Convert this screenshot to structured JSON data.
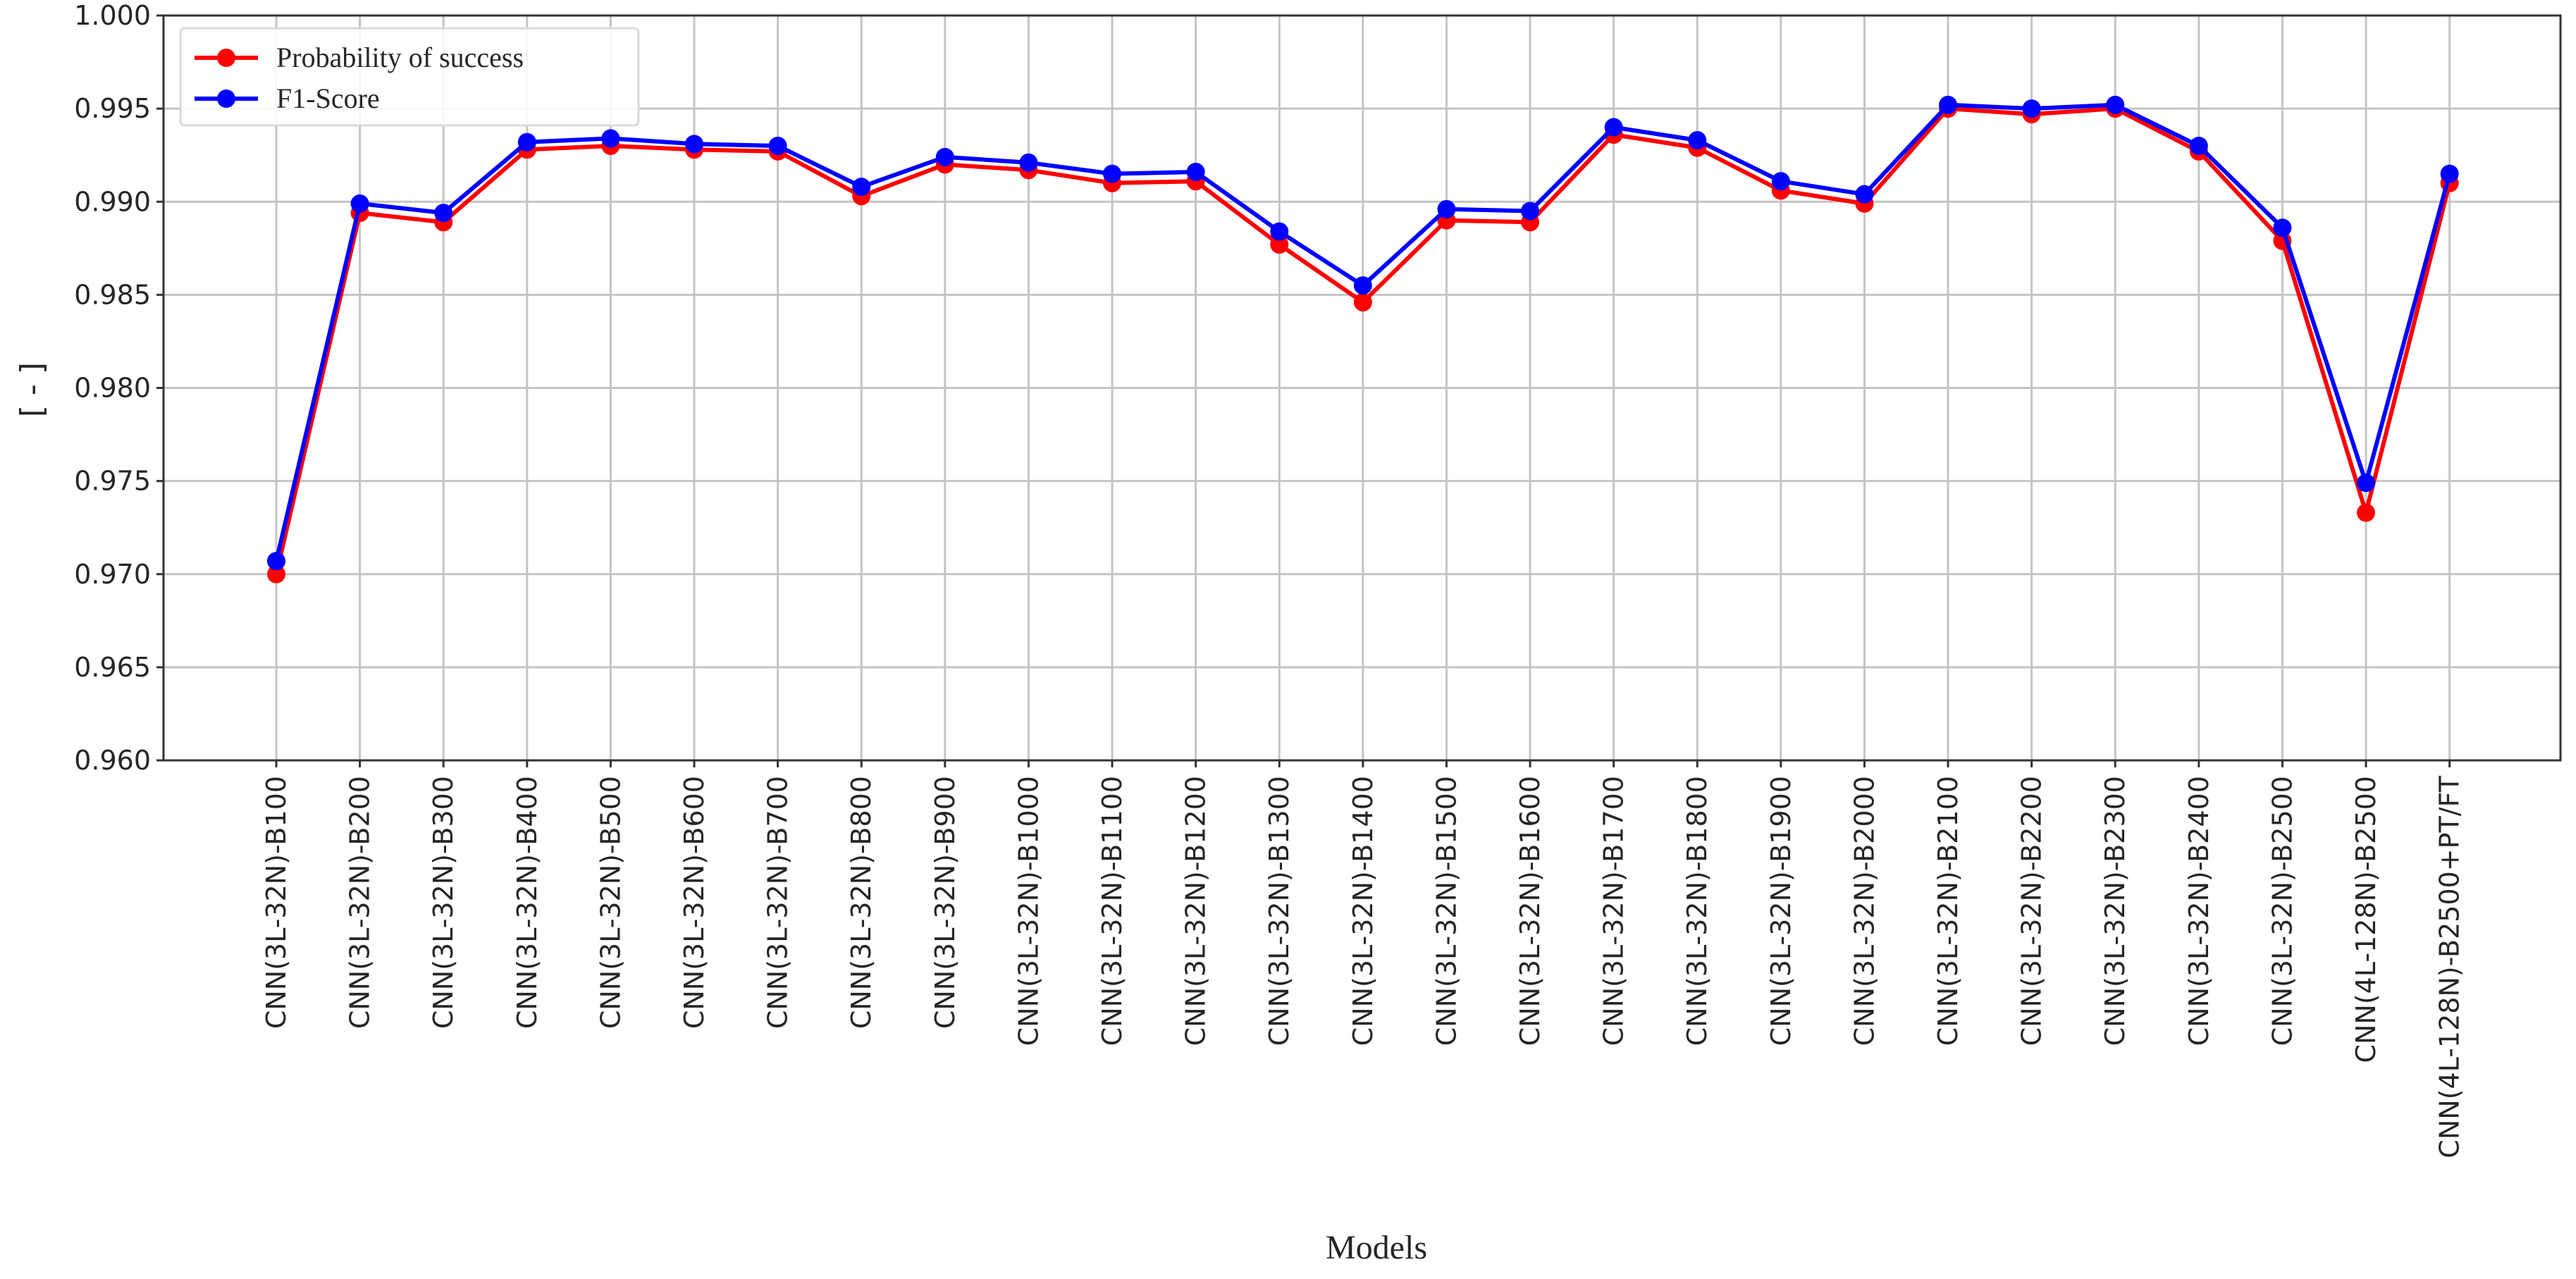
{
  "chart_data": {
    "type": "line",
    "title": "",
    "xlabel": "Models",
    "ylabel": "[ - ]",
    "ylim": [
      0.96,
      1.0
    ],
    "yticks": [
      "0.960",
      "0.965",
      "0.970",
      "0.975",
      "0.980",
      "0.985",
      "0.990",
      "0.995",
      "1.000"
    ],
    "grid": true,
    "legend_position": "top-left",
    "categories": [
      "CNN(3L-32N)-B100",
      "CNN(3L-32N)-B200",
      "CNN(3L-32N)-B300",
      "CNN(3L-32N)-B400",
      "CNN(3L-32N)-B500",
      "CNN(3L-32N)-B600",
      "CNN(3L-32N)-B700",
      "CNN(3L-32N)-B800",
      "CNN(3L-32N)-B900",
      "CNN(3L-32N)-B1000",
      "CNN(3L-32N)-B1100",
      "CNN(3L-32N)-B1200",
      "CNN(3L-32N)-B1300",
      "CNN(3L-32N)-B1400",
      "CNN(3L-32N)-B1500",
      "CNN(3L-32N)-B1600",
      "CNN(3L-32N)-B1700",
      "CNN(3L-32N)-B1800",
      "CNN(3L-32N)-B1900",
      "CNN(3L-32N)-B2000",
      "CNN(3L-32N)-B2100",
      "CNN(3L-32N)-B2200",
      "CNN(3L-32N)-B2300",
      "CNN(3L-32N)-B2400",
      "CNN(3L-32N)-B2500",
      "CNN(4L-128N)-B2500",
      "CNN(4L-128N)-B2500+PT/FT"
    ],
    "series": [
      {
        "name": "Probability of success",
        "color": "#ff0000",
        "values": [
          0.97,
          0.9894,
          0.9889,
          0.9928,
          0.993,
          0.9928,
          0.9927,
          0.9903,
          0.992,
          0.9917,
          0.991,
          0.9911,
          0.9877,
          0.9846,
          0.989,
          0.9889,
          0.9936,
          0.9929,
          0.9906,
          0.9899,
          0.995,
          0.9947,
          0.995,
          0.9927,
          0.9879,
          0.9733,
          0.991
        ]
      },
      {
        "name": "F1-Score",
        "color": "#0000ff",
        "values": [
          0.9707,
          0.9899,
          0.9894,
          0.9932,
          0.9934,
          0.9931,
          0.993,
          0.9908,
          0.9924,
          0.9921,
          0.9915,
          0.9916,
          0.9884,
          0.9855,
          0.9896,
          0.9895,
          0.994,
          0.9933,
          0.9911,
          0.9904,
          0.9952,
          0.995,
          0.9952,
          0.993,
          0.9886,
          0.9749,
          0.9915
        ]
      }
    ]
  }
}
